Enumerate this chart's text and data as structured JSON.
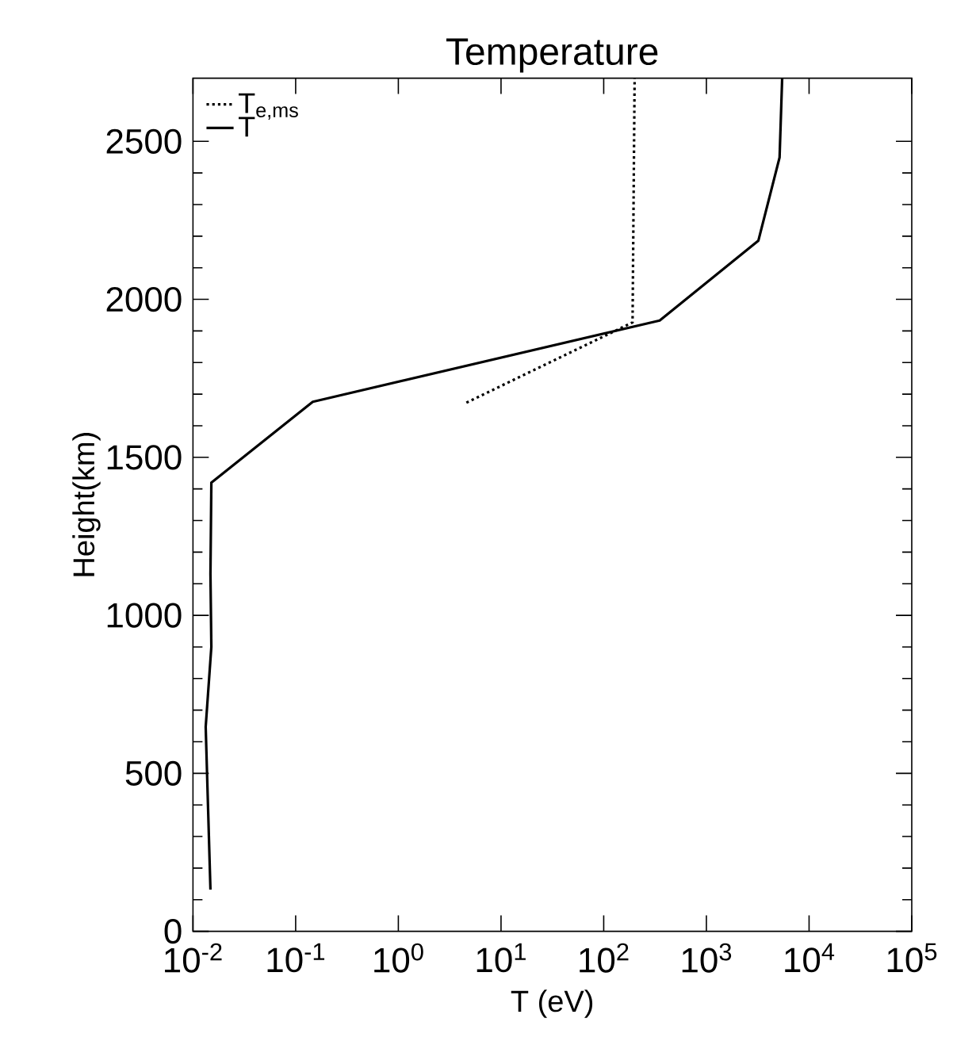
{
  "chart_data": {
    "type": "line",
    "title": "Temperature",
    "xlabel": "T (eV)",
    "ylabel": "Height(km)",
    "log": "x",
    "legend": "top left",
    "marker": "none",
    "grid": false,
    "xlim": [
      0.01,
      100000
    ],
    "ylim": [
      0,
      2700
    ],
    "xticks": [
      {
        "value": 0.01,
        "label": "10$^{-2}$"
      },
      {
        "value": 0.1,
        "label": "10$^{-1}$"
      },
      {
        "value": 1,
        "label": "10$^{0}$"
      },
      {
        "value": 10,
        "label": "10$^{1}$"
      },
      {
        "value": 100,
        "label": "10$^{2}$"
      },
      {
        "value": 1000,
        "label": "10$^{3}$"
      },
      {
        "value": 10000,
        "label": "10$^{4}$"
      },
      {
        "value": 100000,
        "label": "10$^{5}$"
      }
    ],
    "yticks": [
      0,
      500,
      1000,
      1500,
      2000,
      2500
    ],
    "series": [
      {
        "name": "T$_{e,ms}$",
        "color": "#000000",
        "line_style": "dotted",
        "x": [
          4.6,
          191,
          200
        ],
        "values": [
          1673,
          1927,
          2700
        ]
      },
      {
        "name": "T",
        "color": "#000000",
        "line_style": "solid",
        "x": [
          0.0148,
          0.0133,
          0.0151,
          0.0148,
          0.0151,
          0.147,
          351,
          3210,
          5160,
          5470
        ],
        "values": [
          132,
          647,
          900,
          1130,
          1420,
          1676,
          1933,
          2186,
          2449,
          2700
        ]
      }
    ]
  }
}
